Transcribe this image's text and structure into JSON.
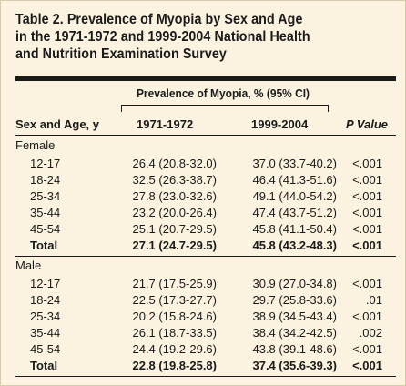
{
  "title": {
    "line1": "Table 2. Prevalence of Myopia by Sex and Age",
    "line2": "in the 1971-1972 and 1999-2004 National Health",
    "line3": "and Nutrition Examination Survey"
  },
  "header": {
    "span": "Prevalence of Myopia, % (95% CI)",
    "col0": "Sex and Age, y",
    "col1": "1971-1972",
    "col2": "1999-2004",
    "col3": "P Value"
  },
  "groups": [
    {
      "name": "Female",
      "rows": [
        {
          "age": "12-17",
          "v1": "26.4 (20.8-32.0)",
          "v2": "37.0 (33.7-40.2)",
          "p": "<.001"
        },
        {
          "age": "18-24",
          "v1": "32.5 (26.3-38.7)",
          "v2": "46.4 (41.3-51.6)",
          "p": "<.001"
        },
        {
          "age": "25-34",
          "v1": "27.8 (23.0-32.6)",
          "v2": "49.1 (44.0-54.2)",
          "p": "<.001"
        },
        {
          "age": "35-44",
          "v1": "23.2 (20.0-26.4)",
          "v2": "47.4 (43.7-51.2)",
          "p": "<.001"
        },
        {
          "age": "45-54",
          "v1": "25.1 (20.7-29.5)",
          "v2": "45.8 (41.1-50.4)",
          "p": "<.001"
        },
        {
          "age": "Total",
          "v1": "27.1 (24.7-29.5)",
          "v2": "45.8 (43.2-48.3)",
          "p": "<.001"
        }
      ]
    },
    {
      "name": "Male",
      "rows": [
        {
          "age": "12-17",
          "v1": "21.7 (17.5-25.9)",
          "v2": "30.9 (27.0-34.8)",
          "p": "<.001"
        },
        {
          "age": "18-24",
          "v1": "22.5 (17.3-27.7)",
          "v2": "29.7 (25.8-33.6)",
          "p": ".01"
        },
        {
          "age": "25-34",
          "v1": "20.2 (15.8-24.6)",
          "v2": "38.9 (34.5-43.4)",
          "p": "<.001"
        },
        {
          "age": "35-44",
          "v1": "26.1 (18.7-33.5)",
          "v2": "38.4 (34.2-42.5)",
          "p": ".002"
        },
        {
          "age": "45-54",
          "v1": "24.4 (19.2-29.6)",
          "v2": "43.8 (39.1-48.6)",
          "p": "<.001"
        },
        {
          "age": "Total",
          "v1": "22.8 (19.8-25.8)",
          "v2": "37.4 (35.6-39.3)",
          "p": "<.001"
        }
      ]
    }
  ]
}
